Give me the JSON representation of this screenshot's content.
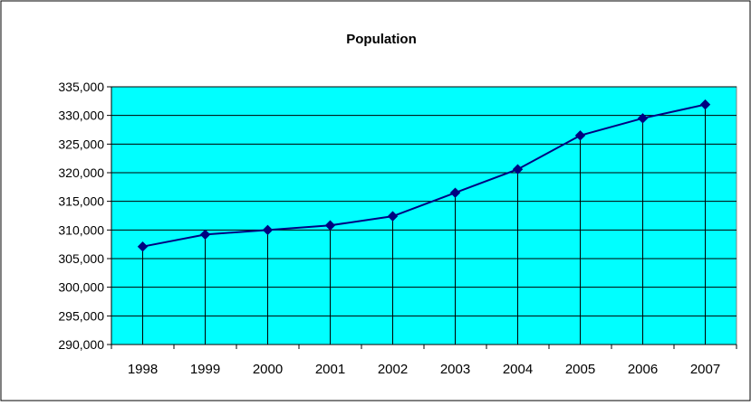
{
  "chart_data": {
    "type": "line",
    "title": "Population",
    "xlabel": "",
    "ylabel": "",
    "categories": [
      "1998",
      "1999",
      "2000",
      "2001",
      "2002",
      "2003",
      "2004",
      "2005",
      "2006",
      "2007"
    ],
    "series": [
      {
        "values": [
          307100,
          309200,
          310000,
          310800,
          312400,
          316500,
          320600,
          326500,
          329500,
          331900
        ]
      }
    ],
    "ylim": [
      290000,
      335000
    ],
    "yticks": [
      290000,
      295000,
      300000,
      305000,
      310000,
      315000,
      320000,
      325000,
      330000,
      335000
    ],
    "ytick_labels": [
      "290,000",
      "295,000",
      "300,000",
      "305,000",
      "310,000",
      "315,000",
      "320,000",
      "325,000",
      "330,000",
      "335,000"
    ],
    "grid": true,
    "drop_lines": true,
    "marker": "diamond",
    "colors": {
      "plot_background": "#00ffff",
      "line": "#000080",
      "marker": "#000080",
      "grid": "#000000",
      "axis": "#000000"
    }
  }
}
